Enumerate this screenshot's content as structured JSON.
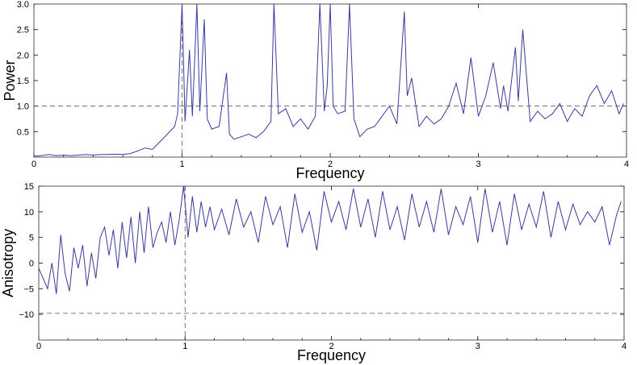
{
  "chart_data": [
    {
      "type": "line",
      "ylabel": "Power",
      "xlabel": "Frequency",
      "xlim": [
        0,
        4
      ],
      "ylim": [
        0,
        3.0
      ],
      "x_ticks": [
        0,
        1,
        2,
        3,
        4
      ],
      "x_tick_labels": [
        "0",
        "1",
        "2",
        "3",
        "4"
      ],
      "y_ticks": [
        0.5,
        1.0,
        1.5,
        2.0,
        2.5,
        3.0
      ],
      "y_tick_labels": [
        "0.5",
        "1.0",
        "1.5",
        "2.0",
        "2.5",
        "3.0"
      ],
      "grid": false,
      "line_color": "#3a3a9c",
      "reference_lines": [
        {
          "orientation": "horizontal",
          "value": 1.0,
          "style": "dashed"
        },
        {
          "orientation": "vertical",
          "value": 1.0,
          "style": "dashed"
        }
      ],
      "series": [
        {
          "x": [
            0.0,
            0.05,
            0.1,
            0.15,
            0.2,
            0.25,
            0.3,
            0.35,
            0.4,
            0.45,
            0.5,
            0.55,
            0.6,
            0.65,
            0.7,
            0.75,
            0.8,
            0.85,
            0.9,
            0.95,
            0.97,
            1.0,
            1.02,
            1.05,
            1.07,
            1.1,
            1.12,
            1.15,
            1.17,
            1.2,
            1.25,
            1.3,
            1.32,
            1.35,
            1.4,
            1.45,
            1.5,
            1.55,
            1.6,
            1.62,
            1.65,
            1.7,
            1.75,
            1.8,
            1.85,
            1.9,
            1.93,
            1.96,
            1.98,
            2.0,
            2.02,
            2.05,
            2.1,
            2.13,
            2.16,
            2.2,
            2.25,
            2.3,
            2.35,
            2.4,
            2.45,
            2.5,
            2.52,
            2.55,
            2.6,
            2.65,
            2.7,
            2.75,
            2.8,
            2.85,
            2.9,
            2.95,
            3.0,
            3.05,
            3.1,
            3.15,
            3.17,
            3.2,
            3.25,
            3.27,
            3.3,
            3.35,
            3.4,
            3.45,
            3.5,
            3.55,
            3.6,
            3.65,
            3.7,
            3.75,
            3.8,
            3.85,
            3.9,
            3.95,
            3.98
          ],
          "y": [
            0.02,
            0.03,
            0.05,
            0.03,
            0.04,
            0.03,
            0.04,
            0.05,
            0.04,
            0.05,
            0.05,
            0.06,
            0.05,
            0.07,
            0.12,
            0.18,
            0.15,
            0.3,
            0.45,
            0.6,
            0.85,
            3.0,
            0.7,
            2.1,
            0.8,
            3.0,
            0.9,
            2.7,
            0.75,
            0.55,
            0.6,
            1.65,
            0.45,
            0.35,
            0.4,
            0.45,
            0.38,
            0.5,
            0.7,
            3.0,
            0.85,
            0.95,
            0.6,
            0.75,
            0.55,
            0.8,
            3.0,
            0.9,
            1.4,
            3.0,
            1.0,
            0.85,
            0.9,
            3.0,
            0.75,
            0.4,
            0.55,
            0.6,
            0.8,
            1.0,
            0.65,
            2.85,
            1.2,
            1.55,
            0.6,
            0.8,
            0.65,
            0.75,
            1.0,
            1.45,
            0.85,
            1.95,
            0.8,
            1.2,
            1.85,
            0.95,
            1.4,
            0.9,
            2.15,
            1.1,
            2.5,
            0.7,
            0.9,
            0.75,
            0.85,
            1.05,
            0.7,
            0.95,
            0.8,
            1.2,
            1.4,
            1.05,
            1.3,
            0.85,
            1.05
          ]
        }
      ]
    },
    {
      "type": "line",
      "ylabel": "Anisotropy",
      "xlabel": "Frequency",
      "xlim": [
        0,
        4
      ],
      "ylim": [
        -15,
        15
      ],
      "x_ticks": [
        0,
        1,
        2,
        3,
        4
      ],
      "x_tick_labels": [
        "0",
        "1",
        "2",
        "3",
        "4"
      ],
      "y_ticks": [
        -10,
        -5,
        0,
        5,
        10,
        15
      ],
      "y_tick_labels": [
        "−10",
        "−5",
        "0",
        "5",
        "10",
        "15"
      ],
      "grid": false,
      "line_color": "#3a3a9c",
      "reference_lines": [
        {
          "orientation": "horizontal",
          "value": -9.8,
          "style": "dashed"
        },
        {
          "orientation": "vertical",
          "value": 1.0,
          "style": "dashed"
        }
      ],
      "series": [
        {
          "x": [
            0.0,
            0.03,
            0.06,
            0.09,
            0.12,
            0.15,
            0.18,
            0.21,
            0.24,
            0.27,
            0.3,
            0.33,
            0.36,
            0.39,
            0.42,
            0.45,
            0.48,
            0.51,
            0.54,
            0.57,
            0.6,
            0.63,
            0.66,
            0.69,
            0.72,
            0.75,
            0.78,
            0.81,
            0.84,
            0.87,
            0.9,
            0.93,
            0.96,
            0.99,
            1.02,
            1.05,
            1.08,
            1.11,
            1.14,
            1.17,
            1.2,
            1.25,
            1.3,
            1.35,
            1.4,
            1.45,
            1.5,
            1.55,
            1.6,
            1.65,
            1.7,
            1.75,
            1.8,
            1.85,
            1.9,
            1.95,
            2.0,
            2.05,
            2.1,
            2.15,
            2.2,
            2.25,
            2.3,
            2.35,
            2.4,
            2.45,
            2.5,
            2.55,
            2.6,
            2.65,
            2.7,
            2.75,
            2.8,
            2.85,
            2.9,
            2.95,
            3.0,
            3.05,
            3.1,
            3.15,
            3.2,
            3.25,
            3.3,
            3.35,
            3.4,
            3.45,
            3.5,
            3.55,
            3.6,
            3.65,
            3.7,
            3.75,
            3.8,
            3.85,
            3.9,
            3.95,
            3.98
          ],
          "y": [
            -1.0,
            -3.0,
            -5.0,
            0.0,
            -6.0,
            5.5,
            -2.0,
            -5.5,
            3.0,
            -1.0,
            3.5,
            -4.5,
            2.0,
            -3.0,
            5.0,
            7.0,
            1.5,
            6.5,
            -1.0,
            8.0,
            1.0,
            9.0,
            0.0,
            10.0,
            2.0,
            11.0,
            3.0,
            6.0,
            8.0,
            4.0,
            10.0,
            3.5,
            8.5,
            15.0,
            5.0,
            13.0,
            6.0,
            12.0,
            7.0,
            11.0,
            6.5,
            10.5,
            5.5,
            12.5,
            7.0,
            10.0,
            4.0,
            13.0,
            7.5,
            11.0,
            3.0,
            13.5,
            6.0,
            10.0,
            2.5,
            14.0,
            8.0,
            12.0,
            6.5,
            14.5,
            7.0,
            12.5,
            5.0,
            14.0,
            6.5,
            11.0,
            4.5,
            13.5,
            7.0,
            12.0,
            6.0,
            14.5,
            5.5,
            11.0,
            7.5,
            13.0,
            4.0,
            14.5,
            6.0,
            12.0,
            3.5,
            13.5,
            6.5,
            11.5,
            7.0,
            14.0,
            5.0,
            12.0,
            6.5,
            11.5,
            7.5,
            10.0,
            8.0,
            11.0,
            3.5,
            9.5,
            12.0
          ]
        }
      ]
    }
  ]
}
